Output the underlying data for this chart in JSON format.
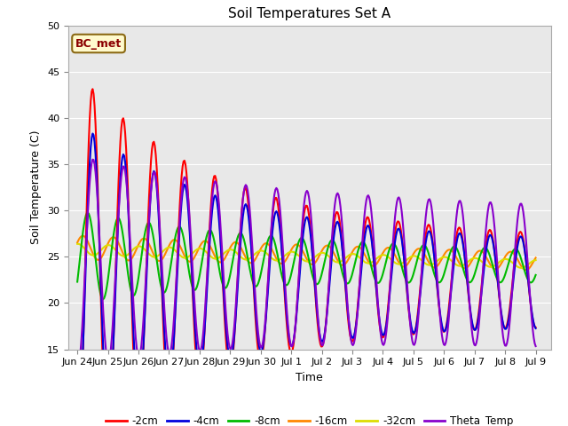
{
  "title": "Soil Temperatures Set A",
  "xlabel": "Time",
  "ylabel": "Soil Temperature (C)",
  "ylim": [
    15,
    50
  ],
  "yticks": [
    15,
    20,
    25,
    30,
    35,
    40,
    45,
    50
  ],
  "annotation_text": "BC_met",
  "annotation_color": "#8B0000",
  "annotation_bg": "#FFFACD",
  "annotation_border": "#8B6914",
  "fig_bg": "#FFFFFF",
  "plot_bg": "#E8E8E8",
  "grid_color": "#FFFFFF",
  "series": {
    "-2cm": {
      "color": "#FF0000",
      "lw": 1.5
    },
    "-4cm": {
      "color": "#0000DD",
      "lw": 1.5
    },
    "-8cm": {
      "color": "#00BB00",
      "lw": 1.5
    },
    "-16cm": {
      "color": "#FF8800",
      "lw": 1.5
    },
    "-32cm": {
      "color": "#DDDD00",
      "lw": 1.5
    },
    "Theta_Temp": {
      "color": "#8800CC",
      "lw": 1.5
    }
  },
  "tick_labels": [
    "Jun 24",
    "Jun 25",
    "Jun 26",
    "Jun 27",
    "Jun 28",
    "Jun 29",
    "Jun 30",
    "Jul 1",
    "Jul 2",
    "Jul 3",
    "Jul 4",
    "Jul 5",
    "Jul 6",
    "Jul 7",
    "Jul 8",
    "Jul 9"
  ],
  "n_points": 480,
  "start_day": 0.0,
  "end_day": 15.0
}
